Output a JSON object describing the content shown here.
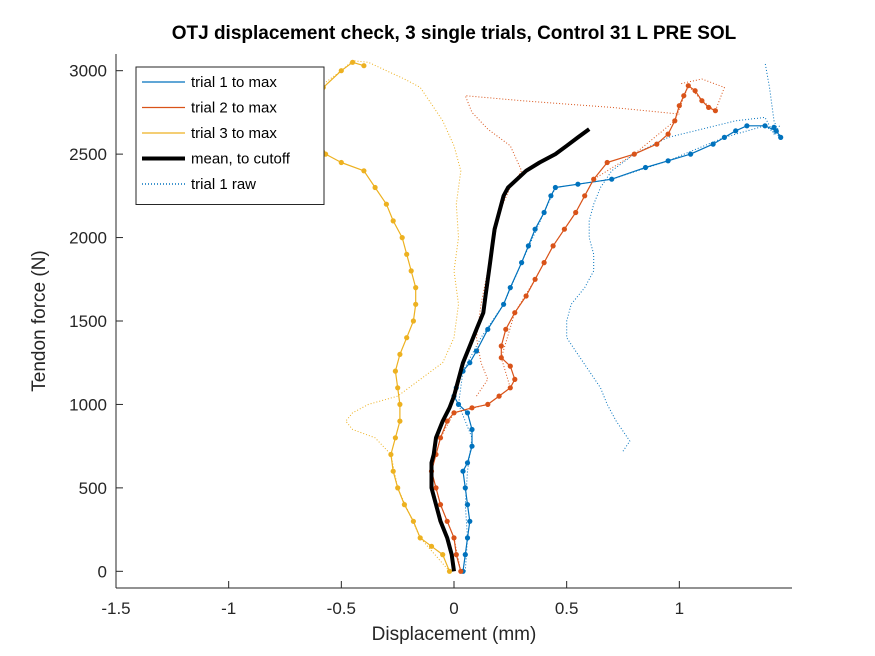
{
  "chart_data": {
    "type": "line",
    "title": "OTJ displacement check, 3 single trials, Control 31 L PRE SOL",
    "xlabel": "Displacement (mm)",
    "ylabel": "Tendon force (N)",
    "xlim": [
      -1.5,
      1.5
    ],
    "ylim": [
      -100,
      3100
    ],
    "xticks": [
      -1.5,
      -1,
      -0.5,
      0,
      0.5,
      1
    ],
    "xtick_labels": [
      "-1.5",
      "-1",
      "-0.5",
      "0",
      "0.5",
      "1"
    ],
    "yticks": [
      0,
      500,
      1000,
      1500,
      2000,
      2500,
      3000
    ],
    "ytick_labels": [
      "0",
      "500",
      "1000",
      "1500",
      "2000",
      "2500",
      "3000"
    ],
    "grid": false,
    "legend_position": "top-left",
    "legend": [
      "trial 1 to max",
      "trial 2 to max",
      "trial 3 to max",
      "mean, to cutoff",
      "trial 1 raw"
    ],
    "series": [
      {
        "name": "trial 1 to max",
        "color": "#0072BD",
        "style": "solid-markers",
        "points": [
          [
            0.04,
            0
          ],
          [
            0.05,
            100
          ],
          [
            0.06,
            200
          ],
          [
            0.07,
            300
          ],
          [
            0.06,
            400
          ],
          [
            0.05,
            500
          ],
          [
            0.04,
            600
          ],
          [
            0.06,
            650
          ],
          [
            0.08,
            750
          ],
          [
            0.08,
            850
          ],
          [
            0.06,
            950
          ],
          [
            0.02,
            1000
          ],
          [
            0.0,
            1050
          ],
          [
            0.01,
            1100
          ],
          [
            0.04,
            1200
          ],
          [
            0.07,
            1250
          ],
          [
            0.1,
            1320
          ],
          [
            0.15,
            1450
          ],
          [
            0.22,
            1600
          ],
          [
            0.25,
            1700
          ],
          [
            0.3,
            1850
          ],
          [
            0.33,
            1950
          ],
          [
            0.36,
            2050
          ],
          [
            0.4,
            2150
          ],
          [
            0.43,
            2250
          ],
          [
            0.45,
            2300
          ],
          [
            0.55,
            2320
          ],
          [
            0.7,
            2350
          ],
          [
            0.85,
            2420
          ],
          [
            0.95,
            2460
          ],
          [
            1.05,
            2500
          ],
          [
            1.15,
            2560
          ],
          [
            1.2,
            2600
          ],
          [
            1.25,
            2640
          ],
          [
            1.3,
            2670
          ],
          [
            1.38,
            2670
          ],
          [
            1.43,
            2640
          ],
          [
            1.45,
            2600
          ],
          [
            1.42,
            2660
          ]
        ]
      },
      {
        "name": "trial 2 to max",
        "color": "#D95319",
        "style": "solid-markers",
        "points": [
          [
            0.03,
            0
          ],
          [
            0.01,
            100
          ],
          [
            0.0,
            200
          ],
          [
            -0.03,
            300
          ],
          [
            -0.06,
            400
          ],
          [
            -0.08,
            500
          ],
          [
            -0.1,
            600
          ],
          [
            -0.08,
            700
          ],
          [
            -0.06,
            800
          ],
          [
            -0.03,
            900
          ],
          [
            0.0,
            950
          ],
          [
            0.08,
            980
          ],
          [
            0.15,
            1000
          ],
          [
            0.2,
            1050
          ],
          [
            0.25,
            1100
          ],
          [
            0.27,
            1150
          ],
          [
            0.25,
            1230
          ],
          [
            0.21,
            1280
          ],
          [
            0.21,
            1350
          ],
          [
            0.23,
            1450
          ],
          [
            0.27,
            1550
          ],
          [
            0.32,
            1650
          ],
          [
            0.36,
            1750
          ],
          [
            0.4,
            1850
          ],
          [
            0.44,
            1950
          ],
          [
            0.49,
            2050
          ],
          [
            0.54,
            2150
          ],
          [
            0.58,
            2250
          ],
          [
            0.62,
            2350
          ],
          [
            0.68,
            2450
          ],
          [
            0.8,
            2500
          ],
          [
            0.9,
            2560
          ],
          [
            0.95,
            2620
          ],
          [
            0.98,
            2700
          ],
          [
            1.0,
            2790
          ],
          [
            1.02,
            2850
          ],
          [
            1.04,
            2910
          ],
          [
            1.07,
            2880
          ],
          [
            1.1,
            2820
          ],
          [
            1.13,
            2780
          ],
          [
            1.16,
            2760
          ]
        ]
      },
      {
        "name": "trial 3 to max",
        "color": "#EDB120",
        "style": "solid-markers",
        "points": [
          [
            -0.02,
            0
          ],
          [
            -0.05,
            100
          ],
          [
            -0.1,
            150
          ],
          [
            -0.15,
            200
          ],
          [
            -0.18,
            300
          ],
          [
            -0.22,
            400
          ],
          [
            -0.25,
            500
          ],
          [
            -0.27,
            600
          ],
          [
            -0.28,
            700
          ],
          [
            -0.26,
            800
          ],
          [
            -0.24,
            900
          ],
          [
            -0.24,
            1000
          ],
          [
            -0.25,
            1100
          ],
          [
            -0.26,
            1200
          ],
          [
            -0.24,
            1300
          ],
          [
            -0.21,
            1400
          ],
          [
            -0.18,
            1500
          ],
          [
            -0.17,
            1600
          ],
          [
            -0.17,
            1700
          ],
          [
            -0.19,
            1800
          ],
          [
            -0.21,
            1900
          ],
          [
            -0.23,
            2000
          ],
          [
            -0.27,
            2100
          ],
          [
            -0.3,
            2200
          ],
          [
            -0.35,
            2300
          ],
          [
            -0.4,
            2400
          ],
          [
            -0.5,
            2450
          ],
          [
            -0.57,
            2500
          ],
          [
            -0.6,
            2600
          ],
          [
            -0.59,
            2700
          ],
          [
            -0.6,
            2800
          ],
          [
            -0.58,
            2900
          ],
          [
            -0.5,
            3000
          ],
          [
            -0.45,
            3050
          ],
          [
            -0.4,
            3030
          ]
        ]
      },
      {
        "name": "mean, to cutoff",
        "color": "#000000",
        "style": "thick",
        "points": [
          [
            0.0,
            0
          ],
          [
            -0.01,
            100
          ],
          [
            -0.03,
            200
          ],
          [
            -0.06,
            300
          ],
          [
            -0.08,
            400
          ],
          [
            -0.1,
            500
          ],
          [
            -0.1,
            650
          ],
          [
            -0.09,
            700
          ],
          [
            -0.08,
            800
          ],
          [
            -0.05,
            900
          ],
          [
            -0.02,
            980
          ],
          [
            0.0,
            1050
          ],
          [
            0.02,
            1150
          ],
          [
            0.04,
            1250
          ],
          [
            0.07,
            1350
          ],
          [
            0.1,
            1450
          ],
          [
            0.13,
            1550
          ],
          [
            0.14,
            1650
          ],
          [
            0.15,
            1750
          ],
          [
            0.16,
            1850
          ],
          [
            0.17,
            1950
          ],
          [
            0.18,
            2050
          ],
          [
            0.2,
            2150
          ],
          [
            0.22,
            2250
          ],
          [
            0.24,
            2300
          ],
          [
            0.28,
            2350
          ],
          [
            0.32,
            2400
          ],
          [
            0.38,
            2450
          ],
          [
            0.45,
            2500
          ],
          [
            0.5,
            2550
          ],
          [
            0.55,
            2600
          ],
          [
            0.6,
            2650
          ]
        ]
      },
      {
        "name": "trial 1 raw",
        "color": "#0072BD",
        "style": "dotted",
        "points": [
          [
            0.05,
            0
          ],
          [
            0.06,
            200
          ],
          [
            0.05,
            400
          ],
          [
            0.06,
            600
          ],
          [
            0.08,
            800
          ],
          [
            0.02,
            1000
          ],
          [
            0.04,
            1200
          ],
          [
            0.12,
            1400
          ],
          [
            0.22,
            1600
          ],
          [
            0.3,
            1850
          ],
          [
            0.4,
            2150
          ],
          [
            0.45,
            2300
          ],
          [
            0.7,
            2350
          ],
          [
            0.95,
            2460
          ],
          [
            1.2,
            2600
          ],
          [
            1.38,
            2670
          ],
          [
            1.45,
            2600
          ],
          [
            1.42,
            2700
          ],
          [
            1.4,
            2900
          ],
          [
            1.38,
            3050
          ]
        ]
      },
      {
        "color": "#0072BD",
        "style": "dotted",
        "points": [
          [
            0.75,
            720
          ],
          [
            0.78,
            780
          ],
          [
            0.72,
            900
          ],
          [
            0.68,
            1000
          ],
          [
            0.65,
            1100
          ],
          [
            0.6,
            1200
          ],
          [
            0.55,
            1300
          ],
          [
            0.5,
            1400
          ],
          [
            0.5,
            1500
          ],
          [
            0.52,
            1600
          ],
          [
            0.58,
            1700
          ],
          [
            0.62,
            1800
          ],
          [
            0.62,
            1900
          ],
          [
            0.6,
            2000
          ],
          [
            0.6,
            2100
          ],
          [
            0.62,
            2200
          ],
          [
            0.65,
            2300
          ],
          [
            0.7,
            2400
          ],
          [
            0.8,
            2500
          ],
          [
            0.95,
            2600
          ],
          [
            1.1,
            2650
          ],
          [
            1.25,
            2700
          ],
          [
            1.38,
            2720
          ],
          [
            1.42,
            2620
          ],
          [
            1.45,
            2680
          ]
        ]
      },
      {
        "color": "#D95319",
        "style": "dotted",
        "points": [
          [
            0.03,
            0
          ],
          [
            0.0,
            200
          ],
          [
            -0.06,
            400
          ],
          [
            -0.1,
            600
          ],
          [
            -0.06,
            800
          ],
          [
            0.0,
            950
          ],
          [
            0.15,
            1000
          ],
          [
            0.25,
            1100
          ],
          [
            0.21,
            1280
          ],
          [
            0.27,
            1550
          ],
          [
            0.36,
            1750
          ],
          [
            0.44,
            1950
          ],
          [
            0.54,
            2150
          ],
          [
            0.62,
            2350
          ],
          [
            0.8,
            2500
          ],
          [
            0.98,
            2700
          ],
          [
            1.04,
            2910
          ],
          [
            1.1,
            2820
          ],
          [
            1.16,
            2760
          ],
          [
            1.2,
            2900
          ],
          [
            1.1,
            2950
          ],
          [
            1.0,
            2920
          ]
        ]
      },
      {
        "color": "#D95319",
        "style": "dotted",
        "points": [
          [
            0.1,
            1050
          ],
          [
            0.15,
            1150
          ],
          [
            0.12,
            1250
          ],
          [
            0.1,
            1400
          ],
          [
            0.12,
            1600
          ],
          [
            0.15,
            1800
          ],
          [
            0.18,
            2000
          ],
          [
            0.2,
            2150
          ],
          [
            0.25,
            2300
          ],
          [
            0.3,
            2400
          ],
          [
            0.25,
            2550
          ],
          [
            0.15,
            2650
          ],
          [
            0.08,
            2750
          ],
          [
            0.05,
            2850
          ],
          [
            0.3,
            2820
          ],
          [
            0.5,
            2800
          ],
          [
            0.7,
            2780
          ],
          [
            0.85,
            2760
          ],
          [
            1.0,
            2740
          ]
        ]
      },
      {
        "color": "#EDB120",
        "style": "dotted",
        "points": [
          [
            -0.02,
            0
          ],
          [
            -0.15,
            200
          ],
          [
            -0.25,
            500
          ],
          [
            -0.28,
            700
          ],
          [
            -0.35,
            800
          ],
          [
            -0.45,
            850
          ],
          [
            -0.48,
            900
          ],
          [
            -0.45,
            950
          ],
          [
            -0.38,
            1000
          ],
          [
            -0.25,
            1050
          ],
          [
            -0.15,
            1150
          ],
          [
            -0.05,
            1250
          ],
          [
            0.0,
            1400
          ],
          [
            0.02,
            1600
          ],
          [
            0.0,
            1800
          ],
          [
            0.02,
            2000
          ],
          [
            0.01,
            2200
          ],
          [
            0.03,
            2400
          ],
          [
            0.0,
            2550
          ],
          [
            -0.05,
            2700
          ],
          [
            -0.1,
            2800
          ],
          [
            -0.15,
            2900
          ],
          [
            -0.22,
            2950
          ],
          [
            -0.3,
            3000
          ],
          [
            -0.38,
            3050
          ],
          [
            -0.45,
            3060
          ],
          [
            -0.5,
            3000
          ],
          [
            -0.55,
            2950
          ],
          [
            -0.6,
            2900
          ],
          [
            -0.58,
            2700
          ],
          [
            -0.6,
            2600
          ]
        ]
      }
    ]
  }
}
